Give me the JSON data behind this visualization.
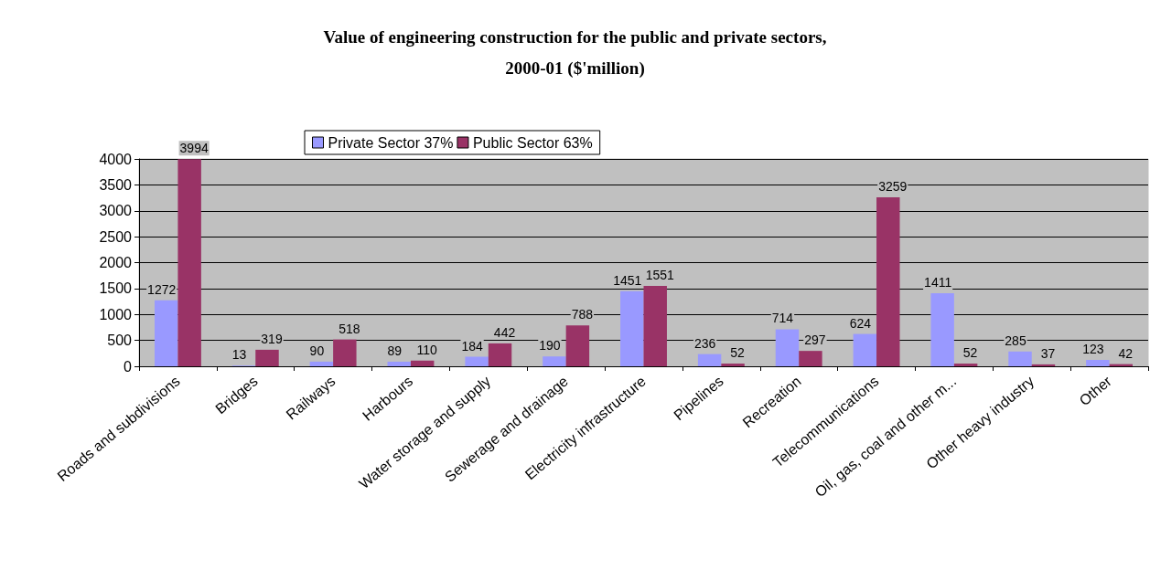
{
  "chart_data": {
    "type": "bar",
    "title": "Value of engineering construction for the public and private sectors,\n2000-01 ($'million)",
    "categories": [
      "Roads and subdivisions",
      "Bridges",
      "Railways",
      "Harbours",
      "Water storage and supply",
      "Sewerage and drainage",
      "Electricity infrastructure",
      "Pipelines",
      "Recreation",
      "Telecommunications",
      "Oil, gas, coal and other m...",
      "Other heavy industry",
      "Other"
    ],
    "series": [
      {
        "name": "Private Sector 37%",
        "color": "#9999ff",
        "values": [
          1272,
          13,
          90,
          89,
          184,
          190,
          1451,
          236,
          714,
          624,
          1411,
          285,
          123
        ]
      },
      {
        "name": "Public Sector 63%",
        "color": "#993366",
        "values": [
          3994,
          319,
          518,
          110,
          442,
          788,
          1551,
          52,
          297,
          3259,
          52,
          37,
          42
        ]
      }
    ],
    "ylim": [
      0,
      4000
    ],
    "yticks": [
      0,
      500,
      1000,
      1500,
      2000,
      2500,
      3000,
      3500,
      4000
    ],
    "grid": "y",
    "legend": "top",
    "data_labels": true
  }
}
